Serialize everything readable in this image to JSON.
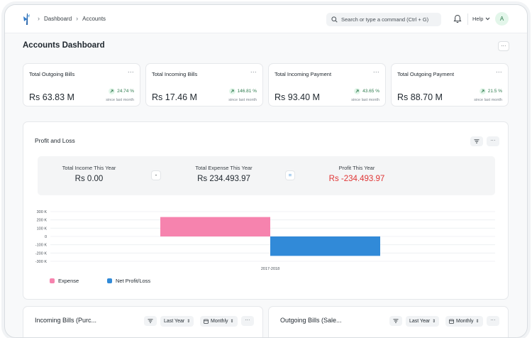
{
  "nav": {
    "crumbs": [
      "Dashboard",
      "Accounts"
    ],
    "search_placeholder": "Search or type a command (Ctrl + G)",
    "help_label": "Help",
    "avatar_initial": "A"
  },
  "page": {
    "title": "Accounts Dashboard",
    "menu": "..."
  },
  "cards": [
    {
      "title": "Total Outgoing Bills",
      "value": "Rs 63.83 M",
      "trend": "24.74 %",
      "sub": "since last month"
    },
    {
      "title": "Total Incoming Bills",
      "value": "Rs 17.46 M",
      "trend": "146.81 %",
      "sub": "since last month"
    },
    {
      "title": "Total Incoming Payment",
      "value": "Rs 93.40 M",
      "trend": "43.65 %",
      "sub": "since last month"
    },
    {
      "title": "Total Outgoing Payment",
      "value": "Rs 88.70 M",
      "trend": "21.5 %",
      "sub": "since last month"
    }
  ],
  "card_menu": "...",
  "profit_loss": {
    "title": "Profit and Loss",
    "menu": "...",
    "summary": {
      "income_label": "Total Income This Year",
      "income_value": "Rs 0.00",
      "minus": "-",
      "expense_label": "Total Expense This Year",
      "expense_value": "Rs 234.493.97",
      "equals": "=",
      "profit_label": "Profit This Year",
      "profit_value": "Rs -234.493.97"
    },
    "colors": {
      "expense": "#f683ae",
      "net": "#318ad8",
      "negative": "#e03636"
    }
  },
  "chart_data": {
    "type": "bar",
    "categories": [
      "2017-2018"
    ],
    "series": [
      {
        "name": "Expense",
        "values": [
          234493.97
        ]
      },
      {
        "name": "Net Profit/Loss",
        "values": [
          -234493.97
        ]
      }
    ],
    "ylim": [
      -300000,
      300000
    ],
    "yticks": [
      "300 K",
      "200 K",
      "100 K",
      "0",
      "-100 K",
      "-200 K",
      "-300 K"
    ],
    "ytick_values": [
      300000,
      200000,
      100000,
      0,
      -100000,
      -200000,
      -300000
    ],
    "grid": true,
    "legend": "bottom-left"
  },
  "bottom_panels": [
    {
      "title": "Incoming Bills (Purc...",
      "period": "Last Year",
      "interval": "Monthly",
      "menu": "..."
    },
    {
      "title": "Outgoing Bills (Sale...",
      "period": "Last Year",
      "interval": "Monthly",
      "menu": "..."
    }
  ]
}
